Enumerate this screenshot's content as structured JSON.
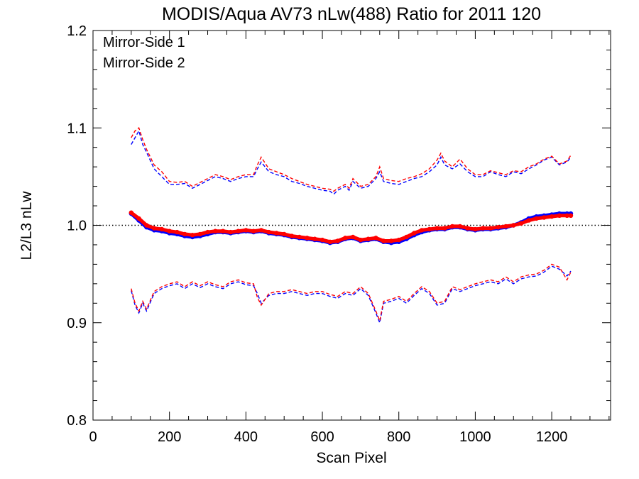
{
  "chart_data": {
    "type": "line",
    "title": "MODIS/Aqua AV73 nLw(488) Ratio for 2011 120",
    "xlabel": "Scan Pixel",
    "ylabel": "L2/L3 nLw",
    "xlim": [
      0,
      1354
    ],
    "ylim": [
      0.8,
      1.2
    ],
    "xticks": [
      0,
      200,
      400,
      600,
      800,
      1000,
      1200
    ],
    "xtick_labels": [
      "0",
      "200",
      "400",
      "600",
      "800",
      "1000",
      "1200"
    ],
    "yticks": [
      0.8,
      0.9,
      1.0,
      1.1,
      1.2
    ],
    "ytick_labels": [
      "0.8",
      "0.9",
      "1.0",
      "1.1",
      "1.2"
    ],
    "reference_line": 1.0,
    "legend_position": "top-left",
    "colors": {
      "ms1": "#0000ff",
      "ms2": "#ff0000",
      "reference": "#000000"
    },
    "series": [
      {
        "name": "Mirror-Side 1",
        "color": "#0000ff",
        "style": "thick-scatter",
        "x": [
          100,
          120,
          140,
          160,
          180,
          200,
          220,
          240,
          260,
          280,
          300,
          320,
          340,
          360,
          380,
          400,
          420,
          440,
          460,
          480,
          500,
          520,
          540,
          560,
          580,
          600,
          620,
          640,
          660,
          680,
          700,
          720,
          740,
          760,
          780,
          800,
          820,
          840,
          860,
          880,
          900,
          920,
          940,
          960,
          980,
          1000,
          1020,
          1040,
          1060,
          1080,
          1100,
          1120,
          1140,
          1160,
          1180,
          1200,
          1220,
          1240,
          1250
        ],
        "y": [
          1.012,
          1.005,
          0.998,
          0.995,
          0.994,
          0.992,
          0.991,
          0.989,
          0.988,
          0.989,
          0.991,
          0.993,
          0.993,
          0.992,
          0.993,
          0.994,
          0.993,
          0.994,
          0.992,
          0.991,
          0.99,
          0.988,
          0.987,
          0.986,
          0.985,
          0.984,
          0.982,
          0.983,
          0.986,
          0.987,
          0.984,
          0.985,
          0.986,
          0.983,
          0.982,
          0.983,
          0.986,
          0.99,
          0.993,
          0.995,
          0.996,
          0.996,
          0.998,
          0.998,
          0.996,
          0.995,
          0.996,
          0.996,
          0.997,
          0.998,
          1.0,
          1.003,
          1.007,
          1.009,
          1.01,
          1.011,
          1.012,
          1.012,
          1.012
        ]
      },
      {
        "name": "Mirror-Side 2",
        "color": "#ff0000",
        "style": "thick-scatter",
        "x": [
          100,
          120,
          140,
          160,
          180,
          200,
          220,
          240,
          260,
          280,
          300,
          320,
          340,
          360,
          380,
          400,
          420,
          440,
          460,
          480,
          500,
          520,
          540,
          560,
          580,
          600,
          620,
          640,
          660,
          680,
          700,
          720,
          740,
          760,
          780,
          800,
          820,
          840,
          860,
          880,
          900,
          920,
          940,
          960,
          980,
          1000,
          1020,
          1040,
          1060,
          1080,
          1100,
          1120,
          1140,
          1160,
          1180,
          1200,
          1220,
          1240,
          1250
        ],
        "y": [
          1.013,
          1.007,
          1.0,
          0.997,
          0.996,
          0.994,
          0.993,
          0.991,
          0.99,
          0.991,
          0.993,
          0.994,
          0.994,
          0.993,
          0.994,
          0.995,
          0.994,
          0.995,
          0.993,
          0.992,
          0.991,
          0.989,
          0.988,
          0.987,
          0.986,
          0.985,
          0.983,
          0.984,
          0.987,
          0.988,
          0.985,
          0.986,
          0.987,
          0.984,
          0.984,
          0.985,
          0.988,
          0.992,
          0.995,
          0.996,
          0.997,
          0.997,
          0.999,
          0.999,
          0.997,
          0.996,
          0.997,
          0.997,
          0.998,
          0.999,
          1.0,
          1.002,
          1.005,
          1.007,
          1.008,
          1.009,
          1.01,
          1.01,
          1.01
        ]
      },
      {
        "name": "",
        "color": "#0000ff",
        "style": "dashed",
        "x": [
          100,
          110,
          120,
          130,
          140,
          160,
          180,
          200,
          220,
          240,
          260,
          280,
          300,
          320,
          340,
          360,
          380,
          400,
          420,
          430,
          440,
          460,
          480,
          500,
          520,
          540,
          560,
          580,
          600,
          620,
          630,
          640,
          660,
          670,
          680,
          700,
          720,
          740,
          750,
          760,
          780,
          800,
          820,
          840,
          860,
          880,
          900,
          910,
          920,
          940,
          960,
          980,
          1000,
          1020,
          1040,
          1060,
          1080,
          1100,
          1120,
          1140,
          1160,
          1180,
          1200,
          1220,
          1240,
          1250
        ],
        "y": [
          1.083,
          1.09,
          1.097,
          1.083,
          1.075,
          1.058,
          1.05,
          1.042,
          1.042,
          1.043,
          1.038,
          1.042,
          1.046,
          1.05,
          1.048,
          1.045,
          1.048,
          1.05,
          1.05,
          1.058,
          1.065,
          1.055,
          1.052,
          1.05,
          1.045,
          1.043,
          1.04,
          1.038,
          1.036,
          1.035,
          1.032,
          1.036,
          1.04,
          1.036,
          1.045,
          1.038,
          1.04,
          1.048,
          1.055,
          1.045,
          1.043,
          1.042,
          1.045,
          1.048,
          1.05,
          1.055,
          1.062,
          1.07,
          1.062,
          1.058,
          1.063,
          1.055,
          1.05,
          1.05,
          1.055,
          1.052,
          1.05,
          1.055,
          1.053,
          1.058,
          1.062,
          1.067,
          1.07,
          1.062,
          1.065,
          1.07
        ]
      },
      {
        "name": "",
        "color": "#ff0000",
        "style": "dashed",
        "x": [
          100,
          110,
          120,
          130,
          140,
          160,
          180,
          200,
          220,
          240,
          260,
          280,
          300,
          320,
          340,
          360,
          380,
          400,
          420,
          430,
          440,
          460,
          480,
          500,
          520,
          540,
          560,
          580,
          600,
          620,
          630,
          640,
          660,
          670,
          680,
          700,
          720,
          740,
          750,
          760,
          780,
          800,
          820,
          840,
          860,
          880,
          900,
          910,
          920,
          940,
          960,
          980,
          1000,
          1020,
          1040,
          1060,
          1080,
          1100,
          1120,
          1140,
          1160,
          1180,
          1200,
          1220,
          1240,
          1250
        ],
        "y": [
          1.09,
          1.097,
          1.1,
          1.088,
          1.078,
          1.062,
          1.055,
          1.045,
          1.044,
          1.045,
          1.04,
          1.044,
          1.048,
          1.052,
          1.05,
          1.047,
          1.05,
          1.052,
          1.052,
          1.062,
          1.07,
          1.058,
          1.055,
          1.052,
          1.048,
          1.045,
          1.042,
          1.04,
          1.038,
          1.037,
          1.035,
          1.038,
          1.042,
          1.038,
          1.048,
          1.04,
          1.042,
          1.05,
          1.06,
          1.048,
          1.046,
          1.045,
          1.048,
          1.05,
          1.053,
          1.058,
          1.067,
          1.074,
          1.066,
          1.06,
          1.068,
          1.058,
          1.052,
          1.052,
          1.056,
          1.054,
          1.052,
          1.056,
          1.055,
          1.06,
          1.063,
          1.068,
          1.071,
          1.063,
          1.066,
          1.072
        ]
      },
      {
        "name": "",
        "color": "#0000ff",
        "style": "dashed",
        "x": [
          100,
          110,
          120,
          130,
          140,
          160,
          180,
          200,
          220,
          240,
          260,
          280,
          300,
          320,
          340,
          360,
          380,
          400,
          420,
          430,
          440,
          460,
          480,
          500,
          520,
          540,
          560,
          580,
          600,
          620,
          640,
          660,
          680,
          700,
          720,
          740,
          750,
          760,
          780,
          800,
          820,
          840,
          860,
          880,
          900,
          920,
          940,
          960,
          980,
          1000,
          1020,
          1040,
          1060,
          1080,
          1100,
          1120,
          1140,
          1160,
          1180,
          1200,
          1220,
          1240,
          1250
        ],
        "y": [
          0.933,
          0.918,
          0.91,
          0.92,
          0.912,
          0.93,
          0.935,
          0.938,
          0.94,
          0.935,
          0.94,
          0.936,
          0.94,
          0.937,
          0.935,
          0.94,
          0.942,
          0.939,
          0.938,
          0.93,
          0.92,
          0.928,
          0.93,
          0.93,
          0.932,
          0.93,
          0.928,
          0.93,
          0.93,
          0.927,
          0.925,
          0.93,
          0.928,
          0.935,
          0.928,
          0.91,
          0.9,
          0.92,
          0.922,
          0.925,
          0.92,
          0.928,
          0.935,
          0.93,
          0.918,
          0.92,
          0.935,
          0.932,
          0.935,
          0.938,
          0.94,
          0.942,
          0.94,
          0.945,
          0.94,
          0.945,
          0.947,
          0.948,
          0.952,
          0.958,
          0.955,
          0.948,
          0.953
        ]
      },
      {
        "name": "",
        "color": "#ff0000",
        "style": "dashed",
        "x": [
          100,
          110,
          120,
          130,
          140,
          160,
          180,
          200,
          220,
          240,
          260,
          280,
          300,
          320,
          340,
          360,
          380,
          400,
          420,
          430,
          440,
          460,
          480,
          500,
          520,
          540,
          560,
          580,
          600,
          620,
          640,
          660,
          680,
          700,
          720,
          740,
          750,
          760,
          780,
          800,
          820,
          840,
          860,
          880,
          900,
          920,
          940,
          960,
          980,
          1000,
          1020,
          1040,
          1060,
          1080,
          1100,
          1120,
          1140,
          1160,
          1180,
          1200,
          1220,
          1240,
          1250
        ],
        "y": [
          0.935,
          0.92,
          0.912,
          0.922,
          0.914,
          0.932,
          0.937,
          0.94,
          0.942,
          0.937,
          0.942,
          0.938,
          0.942,
          0.939,
          0.937,
          0.942,
          0.944,
          0.941,
          0.94,
          0.926,
          0.918,
          0.93,
          0.932,
          0.932,
          0.934,
          0.932,
          0.93,
          0.932,
          0.932,
          0.929,
          0.927,
          0.932,
          0.93,
          0.937,
          0.93,
          0.912,
          0.902,
          0.922,
          0.924,
          0.927,
          0.922,
          0.93,
          0.937,
          0.932,
          0.92,
          0.922,
          0.937,
          0.934,
          0.937,
          0.94,
          0.942,
          0.944,
          0.942,
          0.947,
          0.942,
          0.947,
          0.949,
          0.95,
          0.954,
          0.96,
          0.957,
          0.944,
          0.952
        ]
      }
    ]
  }
}
